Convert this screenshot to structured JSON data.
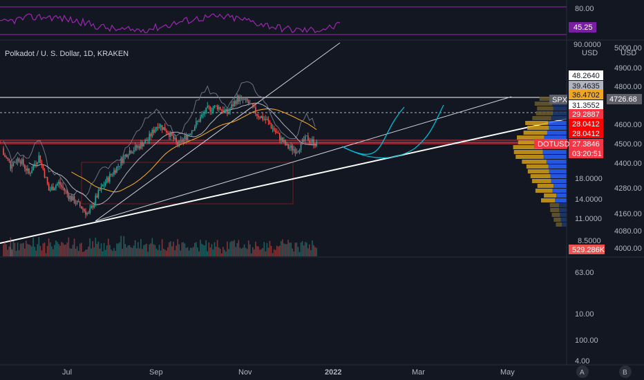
{
  "header": {
    "title": "Polkadot / U. S. Dollar, 1D, KRAKEN"
  },
  "colors": {
    "background": "#131722",
    "bull": "#26a69a",
    "bear": "#ef5350",
    "rsi": "#9c27b0",
    "ma_orange": "#f0a623",
    "spx_line": "#787b86",
    "trendline": "#ffffff",
    "projection": "#00bcd4",
    "red_level": "#f23645",
    "vp_blue": "#2962ff",
    "vp_gold": "#d4a017"
  },
  "rsi_pane": {
    "value_label": "45.25",
    "scale_labels": [
      "80.00"
    ]
  },
  "price_scale": {
    "currency": "USD",
    "labels": [
      "90.0000",
      "18.0000",
      "14.0000",
      "11.0000",
      "8.5000"
    ],
    "tags": [
      "48.2640",
      "39.4635",
      "36.4702",
      "31.3552",
      "29.2887",
      "28.0412",
      "28.0412",
      "27.3846",
      "03:20:51",
      "529.286K"
    ],
    "symbol_tag": "DOTUSD"
  },
  "spx_scale": {
    "currency": "USD",
    "labels": [
      "5000.00",
      "4900.00",
      "4800.00",
      "4600.00",
      "4500.00",
      "4400.00",
      "4280.00",
      "4160.00",
      "4080.00",
      "4000.00"
    ],
    "symbol_tag": "SPX",
    "last_value": "4726.68"
  },
  "lower_pane": {
    "scale_labels": [
      "63.00",
      "10.00",
      "100.00",
      "4.00"
    ]
  },
  "time_axis": {
    "labels": [
      "Jul",
      "Sep",
      "Nov",
      "2022",
      "Mar",
      "May"
    ]
  },
  "corner_buttons": [
    "A",
    "B"
  ],
  "chart_data": {
    "type": "candlestick",
    "symbol": "DOTUSD",
    "exchange": "KRAKEN",
    "interval": "1D",
    "y_scale": "log",
    "ylim": [
      8.5,
      90
    ],
    "x_range": [
      "2021-05-20",
      "2022-06-10"
    ],
    "candles_sample": [
      {
        "date": "2021-05-20",
        "open": 26.0,
        "high": 27.5,
        "low": 23.0,
        "close": 24.5
      },
      {
        "date": "2021-05-25",
        "open": 24.5,
        "high": 25.0,
        "low": 20.0,
        "close": 21.0
      },
      {
        "date": "2021-06-01",
        "open": 21.0,
        "high": 24.0,
        "low": 19.5,
        "close": 23.0
      },
      {
        "date": "2021-06-08",
        "open": 23.0,
        "high": 23.5,
        "low": 18.0,
        "close": 19.0
      },
      {
        "date": "2021-06-15",
        "open": 19.0,
        "high": 25.0,
        "low": 18.5,
        "close": 23.5
      },
      {
        "date": "2021-06-22",
        "open": 23.5,
        "high": 24.0,
        "low": 14.5,
        "close": 15.5
      },
      {
        "date": "2021-06-29",
        "open": 15.5,
        "high": 18.5,
        "low": 15.0,
        "close": 17.0
      },
      {
        "date": "2021-07-06",
        "open": 17.0,
        "high": 17.5,
        "low": 14.0,
        "close": 14.5
      },
      {
        "date": "2021-07-13",
        "open": 14.5,
        "high": 15.0,
        "low": 12.5,
        "close": 13.0
      },
      {
        "date": "2021-07-20",
        "open": 13.0,
        "high": 13.5,
        "low": 10.5,
        "close": 11.5
      },
      {
        "date": "2021-07-27",
        "open": 11.5,
        "high": 15.5,
        "low": 11.0,
        "close": 15.0
      },
      {
        "date": "2021-08-03",
        "open": 15.0,
        "high": 18.5,
        "low": 14.5,
        "close": 18.0
      },
      {
        "date": "2021-08-10",
        "open": 18.0,
        "high": 22.0,
        "low": 17.5,
        "close": 21.0
      },
      {
        "date": "2021-08-17",
        "open": 21.0,
        "high": 26.0,
        "low": 20.0,
        "close": 25.0
      },
      {
        "date": "2021-08-24",
        "open": 25.0,
        "high": 27.5,
        "low": 24.0,
        "close": 26.5
      },
      {
        "date": "2021-08-31",
        "open": 26.5,
        "high": 30.0,
        "low": 25.5,
        "close": 29.0
      },
      {
        "date": "2021-09-07",
        "open": 29.0,
        "high": 38.0,
        "low": 27.0,
        "close": 35.0
      },
      {
        "date": "2021-09-14",
        "open": 35.0,
        "high": 36.5,
        "low": 30.0,
        "close": 32.0
      },
      {
        "date": "2021-09-21",
        "open": 32.0,
        "high": 33.0,
        "low": 26.0,
        "close": 27.0
      },
      {
        "date": "2021-09-28",
        "open": 27.0,
        "high": 31.0,
        "low": 26.5,
        "close": 30.5
      },
      {
        "date": "2021-10-05",
        "open": 30.5,
        "high": 37.0,
        "low": 30.0,
        "close": 36.0
      },
      {
        "date": "2021-10-12",
        "open": 36.0,
        "high": 43.0,
        "low": 35.0,
        "close": 42.0
      },
      {
        "date": "2021-10-19",
        "open": 42.0,
        "high": 44.5,
        "low": 40.0,
        "close": 43.5
      },
      {
        "date": "2021-10-26",
        "open": 43.5,
        "high": 45.0,
        "low": 38.0,
        "close": 40.0
      },
      {
        "date": "2021-11-02",
        "open": 40.0,
        "high": 49.0,
        "low": 39.5,
        "close": 48.0
      },
      {
        "date": "2021-11-09",
        "open": 48.0,
        "high": 50.0,
        "low": 44.0,
        "close": 46.0
      },
      {
        "date": "2021-11-16",
        "open": 46.0,
        "high": 47.0,
        "low": 38.0,
        "close": 39.5
      },
      {
        "date": "2021-11-23",
        "open": 39.5,
        "high": 41.0,
        "low": 35.5,
        "close": 36.5
      },
      {
        "date": "2021-11-30",
        "open": 36.5,
        "high": 37.5,
        "low": 30.0,
        "close": 31.0
      },
      {
        "date": "2021-12-07",
        "open": 31.0,
        "high": 32.5,
        "low": 25.5,
        "close": 26.5
      },
      {
        "date": "2021-12-14",
        "open": 26.5,
        "high": 27.5,
        "low": 24.5,
        "close": 25.5
      },
      {
        "date": "2021-12-21",
        "open": 25.5,
        "high": 30.5,
        "low": 25.0,
        "close": 29.5
      },
      {
        "date": "2021-12-28",
        "open": 29.5,
        "high": 30.0,
        "low": 26.5,
        "close": 27.38
      }
    ],
    "levels": [
      48.264,
      39.4635,
      36.4702,
      31.3552,
      29.2887,
      28.0412,
      27.3846
    ],
    "last_close": 27.3846,
    "countdown": "03:20:51",
    "volume_last": "529.286K",
    "spx_last": 4726.68,
    "rsi_last": 45.25,
    "grid": false
  }
}
